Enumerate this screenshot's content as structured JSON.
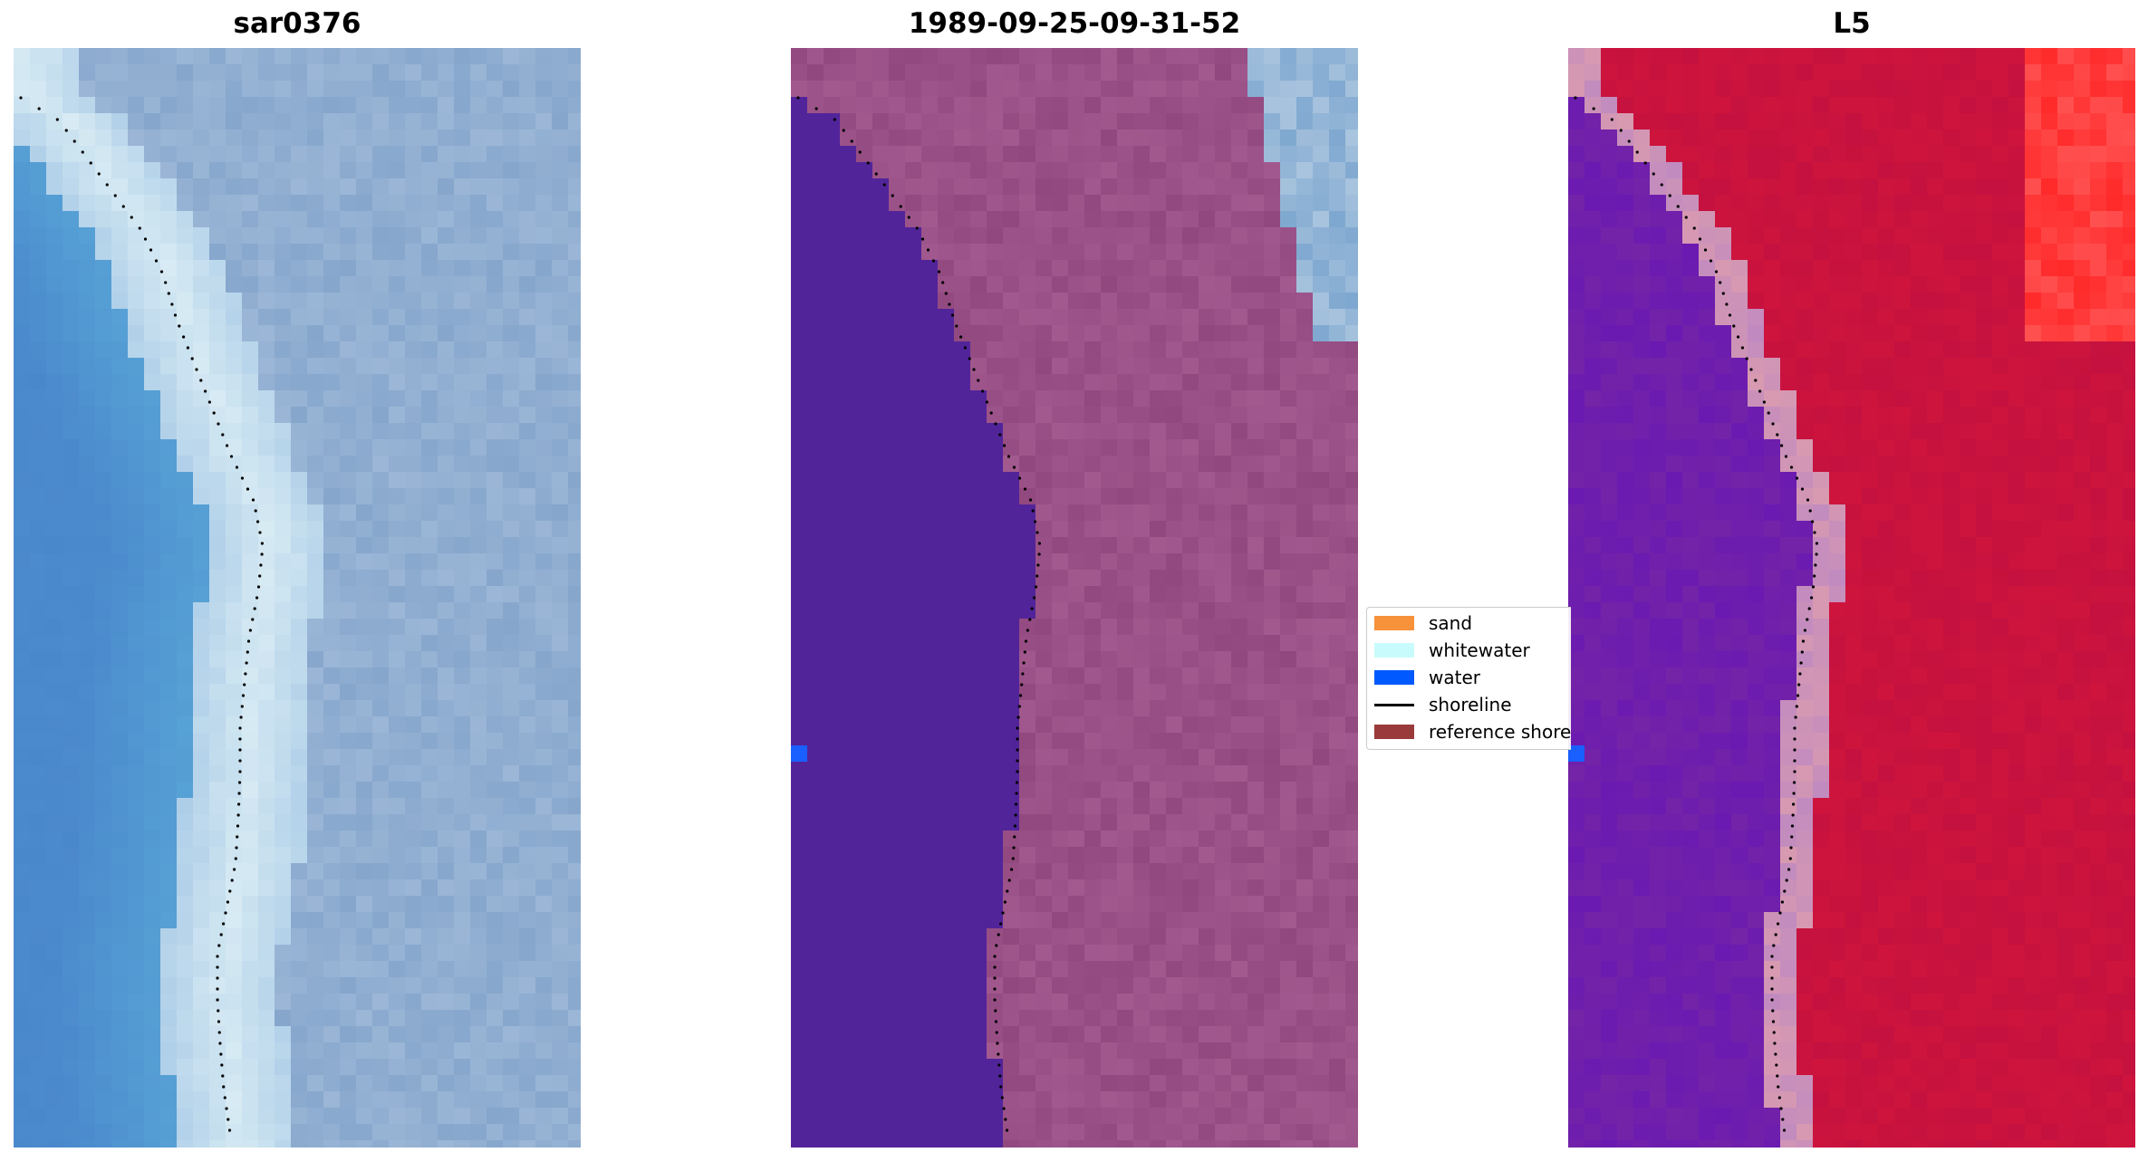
{
  "titles": {
    "panel1": "sar0376",
    "panel2": "1989-09-25-09-31-52",
    "panel3": "L5"
  },
  "legend": [
    {
      "label": "sand",
      "color": "#f7913a",
      "kind": "patch"
    },
    {
      "label": "whitewater",
      "color": "#c8fbfb",
      "kind": "patch"
    },
    {
      "label": "water",
      "color": "#0059ff",
      "kind": "patch"
    },
    {
      "label": "shoreline",
      "color": "#000000",
      "kind": "line"
    },
    {
      "label": "reference shoreline",
      "color": "#9b3a3a",
      "kind": "patch"
    }
  ],
  "colors": {
    "water_class": "#52249a",
    "land_class": "#91487f",
    "rgb_water": "#4a88cc",
    "rgb_surf": "#d9ecf4",
    "rgb_land": "#86a6cc",
    "index_water": "#6a1ab0",
    "index_land": "#c4113f",
    "water_marker": "#1a5fff"
  }
}
